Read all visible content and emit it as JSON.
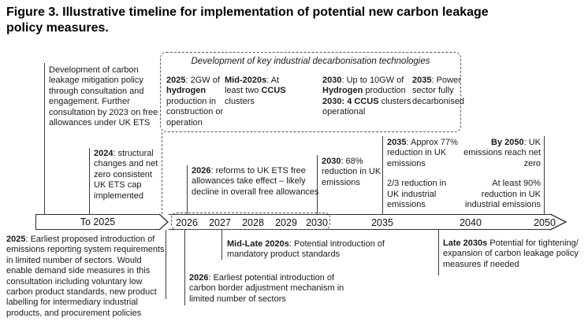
{
  "title": {
    "line1": "Figure 3. Illustrative timeline for implementation of potential new carbon leakage",
    "line2": "policy measures."
  },
  "left_note": "Development of carbon leakage mitigation policy through consultation and engagement. Further consultation by 2023 on free allowances under UK ETS",
  "tech_box": {
    "title": "Development of key industrial decarbonisation technologies",
    "col1": [
      {
        "t": "2025",
        "b": true
      },
      {
        "t": ": 2GW of "
      },
      {
        "t": "hydrogen",
        "b": true
      },
      {
        "t": " production in construction or operation"
      }
    ],
    "col2": [
      {
        "t": "Mid-2020s",
        "b": true
      },
      {
        "t": ": At least two "
      },
      {
        "t": "CCUS",
        "b": true
      },
      {
        "t": " clusters"
      }
    ],
    "col3a": [
      {
        "t": "2030",
        "b": true
      },
      {
        "t": ": Up to 10GW of "
      },
      {
        "t": "Hydrogen",
        "b": true
      },
      {
        "t": " production"
      }
    ],
    "col3b": [
      {
        "t": "2030: 4 CCUS",
        "b": true
      },
      {
        "t": " clusters operational"
      }
    ],
    "col4": [
      {
        "t": "2035",
        "b": true
      },
      {
        "t": ": Power sector fully decarbonised"
      }
    ]
  },
  "milestones": {
    "m2024": [
      {
        "t": "2024",
        "b": true
      },
      {
        "t": ": structural changes and net zero consistent UK ETS cap implemented"
      }
    ],
    "m2026": [
      {
        "t": "2026",
        "b": true
      },
      {
        "t": ": reforms to UK ETS free allowances take effect – likely decline in overall free allowances"
      }
    ],
    "m2030": [
      {
        "t": "2030",
        "b": true
      },
      {
        "t": ": 68% reduction in UK emissions"
      }
    ],
    "m2035a": [
      {
        "t": "2035",
        "b": true
      },
      {
        "t": ": Approx 77% reduction in UK emissions"
      }
    ],
    "m2035b": "2/3 reduction in UK industrial emissions",
    "m2050a": [
      {
        "t": "By 2050",
        "b": true
      },
      {
        "t": ": UK emissions reach net zero"
      }
    ],
    "m2050b": "At least 90% reduction in UK industrial emissions"
  },
  "axis": {
    "to_label": "To 2025",
    "years": [
      "2026",
      "2027",
      "2028",
      "2029",
      "2030",
      "2035",
      "2040",
      "2050"
    ]
  },
  "bottom": {
    "b2025": [
      {
        "t": "2025",
        "b": true
      },
      {
        "t": ": Earliest proposed introduction of emissions reporting system requirements in limited number of sectors. Would enable demand side measures in this consultation including voluntary low carbon product standards, new product labelling for intermediary industrial products, and procurement policies"
      }
    ],
    "midlate": [
      {
        "t": "Mid-Late 2020s",
        "b": true
      },
      {
        "t": ": Potential introduction of mandatory product standards"
      }
    ],
    "b2026": [
      {
        "t": "2026",
        "b": true
      },
      {
        "t": ": Earliest potential introduction of carbon border adjustment mechanism in limited number of sectors"
      }
    ],
    "late2030s": [
      {
        "t": "Late 2030s",
        "b": true
      },
      {
        "t": " Potential for tightening/ expansion of carbon leakage policy measures if needed"
      }
    ]
  }
}
